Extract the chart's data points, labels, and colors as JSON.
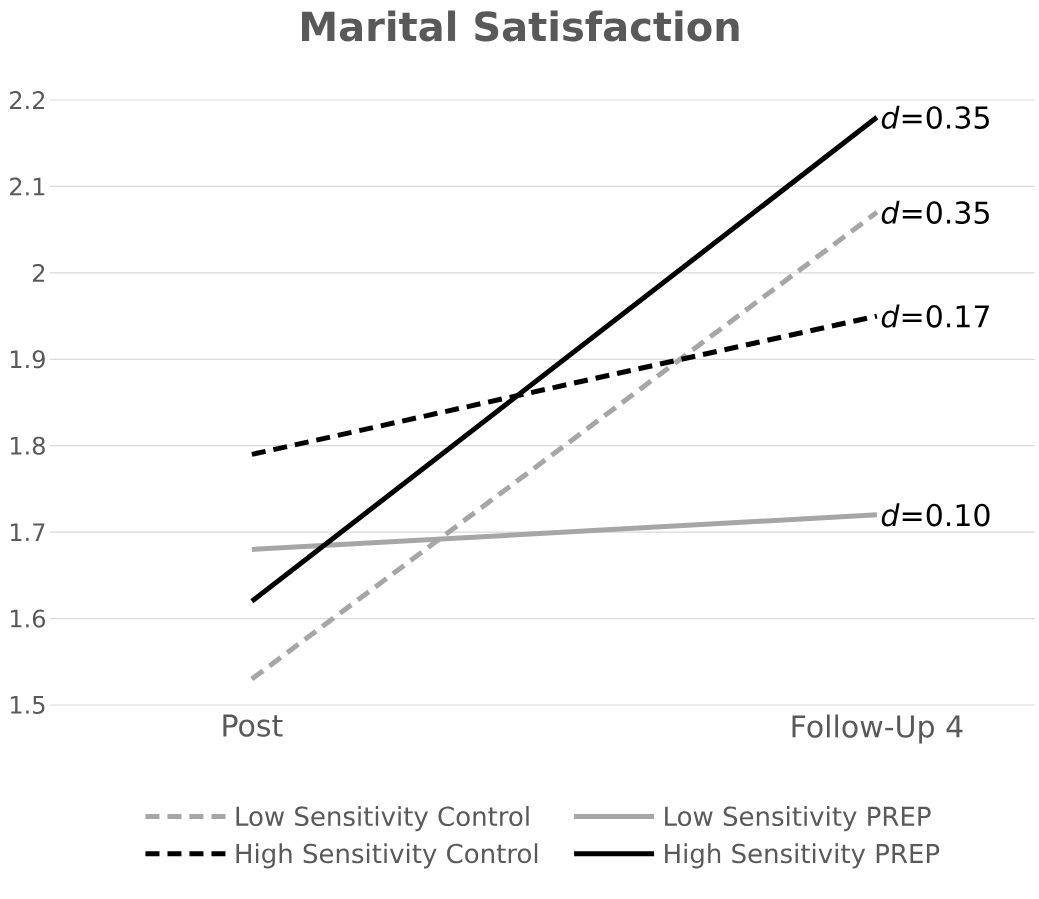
{
  "chart_data": {
    "type": "line",
    "title": "Marital Satisfaction",
    "categories": [
      "Post",
      "Follow-Up 4"
    ],
    "series": [
      {
        "name": "Low Sensitivity Control",
        "color": "#a6a6a6",
        "line_style": "dashed",
        "values": [
          1.53,
          2.07
        ]
      },
      {
        "name": "Low Sensitivity PREP",
        "color": "#a6a6a6",
        "line_style": "solid",
        "values": [
          1.68,
          1.72
        ]
      },
      {
        "name": "High Sensitivity Control",
        "color": "#000000",
        "line_style": "dashed",
        "values": [
          1.79,
          1.95
        ]
      },
      {
        "name": "High Sensitivity PREP",
        "color": "#000000",
        "line_style": "solid",
        "values": [
          1.62,
          2.18
        ]
      }
    ],
    "ylim": [
      1.5,
      2.2
    ],
    "yticks": [
      1.5,
      1.6,
      1.7,
      1.8,
      1.9,
      2,
      2.1,
      2.2
    ],
    "grid": "y",
    "legend": "bottom",
    "marker": "none",
    "annotations": [
      {
        "text": "*d*=0.35",
        "x": "Follow-Up 4",
        "y": 2.18
      },
      {
        "text": "*d*=0.35",
        "x": "Follow-Up 4",
        "y": 2.07
      },
      {
        "text": "*d*=0.17",
        "x": "Follow-Up 4",
        "y": 1.95
      },
      {
        "text": "*d*=0.10",
        "x": "Follow-Up 4",
        "y": 1.72
      }
    ]
  }
}
